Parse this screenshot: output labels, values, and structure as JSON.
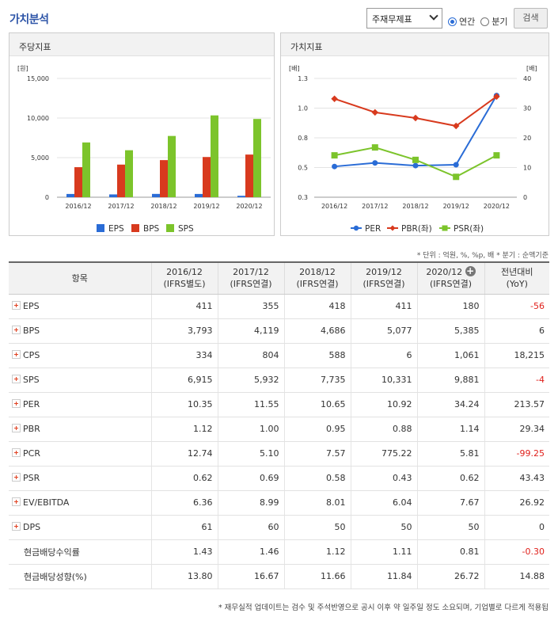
{
  "header": {
    "title": "가치분석",
    "select_value": "주재무제표",
    "radio_annual": "연간",
    "radio_quarter": "분기",
    "search_label": "검색"
  },
  "left_panel": {
    "title": "주당지표"
  },
  "right_panel": {
    "title": "가치지표"
  },
  "chart_data": [
    {
      "type": "bar",
      "title": "주당지표",
      "y_unit": "[원]",
      "categories": [
        "2016/12",
        "2017/12",
        "2018/12",
        "2019/12",
        "2020/12"
      ],
      "yticks": [
        "15,000",
        "10,000",
        "5,000",
        "0"
      ],
      "ylim": [
        0,
        15000
      ],
      "series": [
        {
          "name": "EPS",
          "color": "#2a6cd6",
          "values": [
            411,
            355,
            418,
            411,
            180
          ]
        },
        {
          "name": "BPS",
          "color": "#d83a1e",
          "values": [
            3793,
            4119,
            4686,
            5077,
            5385
          ]
        },
        {
          "name": "SPS",
          "color": "#7cc42b",
          "values": [
            6915,
            5932,
            7735,
            10331,
            9881
          ]
        }
      ],
      "legend": "bottom"
    },
    {
      "type": "line",
      "title": "가치지표",
      "y_unit_left": "[배]",
      "y_unit_right": "[배]",
      "categories": [
        "2016/12",
        "2017/12",
        "2018/12",
        "2019/12",
        "2020/12"
      ],
      "left_ticks": [
        "1.3",
        "1.0",
        "0.8",
        "0.5",
        "0.3"
      ],
      "right_ticks": [
        "40",
        "30",
        "20",
        "10",
        "0"
      ],
      "ylim_left": [
        0.25,
        1.3
      ],
      "ylim_right": [
        0,
        40
      ],
      "series": [
        {
          "name": "PER",
          "axis": "right",
          "color": "#2a6cd6",
          "marker": "circle",
          "values": [
            10.35,
            11.55,
            10.65,
            10.92,
            34.24
          ]
        },
        {
          "name": "PBR(좌)",
          "axis": "left",
          "color": "#d83a1e",
          "marker": "diamond",
          "values": [
            1.12,
            1.0,
            0.95,
            0.88,
            1.14
          ]
        },
        {
          "name": "PSR(좌)",
          "axis": "left",
          "color": "#7cc42b",
          "marker": "square",
          "values": [
            0.62,
            0.69,
            0.58,
            0.43,
            0.62
          ]
        }
      ],
      "legend": "bottom"
    }
  ],
  "unit_note": "* 단위 : 억원, %, %p, 배   * 분기 : 순액기준",
  "table": {
    "headers": [
      {
        "l1": "항목",
        "l2": ""
      },
      {
        "l1": "2016/12",
        "l2": "(IFRS별도)"
      },
      {
        "l1": "2017/12",
        "l2": "(IFRS연결)"
      },
      {
        "l1": "2018/12",
        "l2": "(IFRS연결)"
      },
      {
        "l1": "2019/12",
        "l2": "(IFRS연결)"
      },
      {
        "l1": "2020/12",
        "l2": "(IFRS연결)"
      },
      {
        "l1": "전년대비",
        "l2": "(YoY)"
      }
    ],
    "rows": [
      {
        "label": "EPS",
        "plus": true,
        "values": [
          "411",
          "355",
          "418",
          "411",
          "180",
          "-56"
        ],
        "yoy_neg": true
      },
      {
        "label": "BPS",
        "plus": true,
        "values": [
          "3,793",
          "4,119",
          "4,686",
          "5,077",
          "5,385",
          "6"
        ],
        "yoy_neg": false
      },
      {
        "label": "CPS",
        "plus": true,
        "values": [
          "334",
          "804",
          "588",
          "6",
          "1,061",
          "18,215"
        ],
        "yoy_neg": false
      },
      {
        "label": "SPS",
        "plus": true,
        "values": [
          "6,915",
          "5,932",
          "7,735",
          "10,331",
          "9,881",
          "-4"
        ],
        "yoy_neg": true
      },
      {
        "label": "PER",
        "plus": true,
        "values": [
          "10.35",
          "11.55",
          "10.65",
          "10.92",
          "34.24",
          "213.57"
        ],
        "yoy_neg": false
      },
      {
        "label": "PBR",
        "plus": true,
        "values": [
          "1.12",
          "1.00",
          "0.95",
          "0.88",
          "1.14",
          "29.34"
        ],
        "yoy_neg": false
      },
      {
        "label": "PCR",
        "plus": true,
        "values": [
          "12.74",
          "5.10",
          "7.57",
          "775.22",
          "5.81",
          "-99.25"
        ],
        "yoy_neg": true
      },
      {
        "label": "PSR",
        "plus": true,
        "values": [
          "0.62",
          "0.69",
          "0.58",
          "0.43",
          "0.62",
          "43.43"
        ],
        "yoy_neg": false
      },
      {
        "label": "EV/EBITDA",
        "plus": true,
        "values": [
          "6.36",
          "8.99",
          "8.01",
          "6.04",
          "7.67",
          "26.92"
        ],
        "yoy_neg": false
      },
      {
        "label": "DPS",
        "plus": true,
        "values": [
          "61",
          "60",
          "50",
          "50",
          "50",
          "0"
        ],
        "yoy_neg": false
      },
      {
        "label": "현금배당수익률",
        "plus": false,
        "values": [
          "1.43",
          "1.46",
          "1.12",
          "1.11",
          "0.81",
          "-0.30"
        ],
        "yoy_neg": true
      },
      {
        "label": "현금배당성향(%)",
        "plus": false,
        "values": [
          "13.80",
          "16.67",
          "11.66",
          "11.84",
          "26.72",
          "14.88"
        ],
        "yoy_neg": false
      }
    ]
  },
  "footnote": "* 재무실적 업데이트는 검수 및 주석반영으로 공시 이후 약 일주일 정도 소요되며, 기업별로 다르게 적용됩"
}
